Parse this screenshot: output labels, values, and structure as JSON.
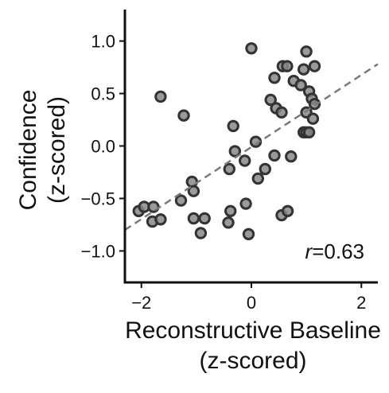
{
  "chart_data": {
    "type": "scatter",
    "xlabel": [
      "Reconstructive Baseline",
      "(z-scored)"
    ],
    "ylabel": [
      "Confidence",
      "(z-scored)"
    ],
    "xlim": [
      -2.3,
      2.3
    ],
    "ylim": [
      -1.3,
      1.3
    ],
    "xticks": [
      -2,
      0,
      2
    ],
    "yticks": [
      -1.0,
      -0.5,
      0.0,
      0.5,
      1.0
    ],
    "xtick_labels": [
      "−2",
      "0",
      "2"
    ],
    "ytick_labels": [
      "−1.0",
      "−0.5",
      "0.0",
      "0.5",
      "1.0"
    ],
    "grid": false,
    "annotation": {
      "italic": "r",
      "rest": "=0.63"
    },
    "trend_line": {
      "style": "dashed",
      "x": [
        -2.3,
        2.3
      ],
      "y": [
        -0.8,
        0.78
      ]
    },
    "colors": {
      "marker_fill": "#888888",
      "marker_edge": "#333333",
      "trend": "#7a7a7a",
      "axis": "#111111"
    },
    "series": [
      {
        "points": [
          [
            0.0,
            0.93
          ],
          [
            1.0,
            0.9
          ],
          [
            0.57,
            0.76
          ],
          [
            0.65,
            0.76
          ],
          [
            0.95,
            0.73
          ],
          [
            1.15,
            0.76
          ],
          [
            0.42,
            0.65
          ],
          [
            0.77,
            0.62
          ],
          [
            0.9,
            0.58
          ],
          [
            1.05,
            0.52
          ],
          [
            1.1,
            0.45
          ],
          [
            0.35,
            0.44
          ],
          [
            1.15,
            0.4
          ],
          [
            0.45,
            0.36
          ],
          [
            0.55,
            0.32
          ],
          [
            1.0,
            0.32
          ],
          [
            1.12,
            0.26
          ],
          [
            -1.65,
            0.47
          ],
          [
            -1.23,
            0.29
          ],
          [
            -0.33,
            0.19
          ],
          [
            0.95,
            0.13
          ],
          [
            1.0,
            0.13
          ],
          [
            1.05,
            0.13
          ],
          [
            0.08,
            0.04
          ],
          [
            -0.3,
            -0.05
          ],
          [
            0.42,
            -0.09
          ],
          [
            0.72,
            -0.1
          ],
          [
            -0.12,
            -0.14
          ],
          [
            -0.4,
            -0.22
          ],
          [
            0.25,
            -0.22
          ],
          [
            -2.05,
            -0.62
          ],
          [
            -1.95,
            -0.58
          ],
          [
            -1.78,
            -0.58
          ],
          [
            -1.8,
            -0.72
          ],
          [
            -1.65,
            -0.7
          ],
          [
            -1.08,
            -0.34
          ],
          [
            -1.05,
            -0.43
          ],
          [
            -1.28,
            -0.52
          ],
          [
            0.12,
            -0.31
          ],
          [
            -0.1,
            -0.55
          ],
          [
            -0.38,
            -0.62
          ],
          [
            -1.05,
            -0.69
          ],
          [
            -0.85,
            -0.69
          ],
          [
            -0.42,
            -0.73
          ],
          [
            -0.92,
            -0.83
          ],
          [
            -0.05,
            -0.84
          ],
          [
            0.55,
            -0.66
          ],
          [
            0.66,
            -0.62
          ]
        ]
      }
    ]
  }
}
